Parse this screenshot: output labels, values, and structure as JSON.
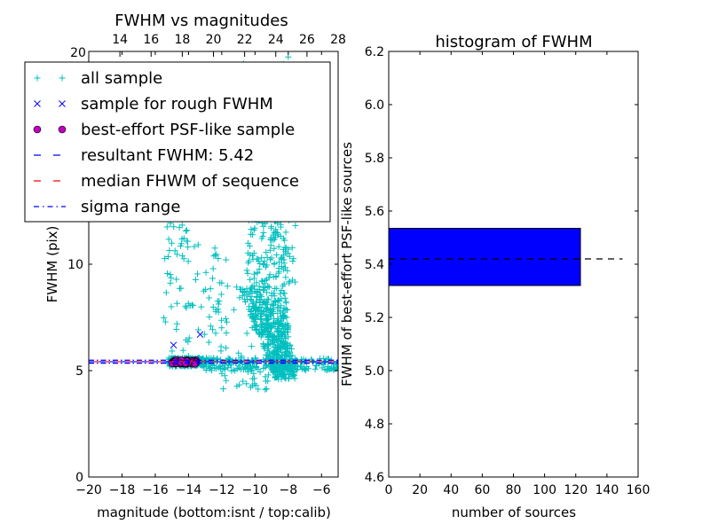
{
  "chart_data": [
    {
      "type": "scatter",
      "title": "FWHM vs magnitudes",
      "xlabel": "magnitude (bottom:isnt / top:calib)",
      "ylabel": "FWHM (pix)",
      "xlim": [
        -20,
        -5
      ],
      "ylim": [
        0,
        20
      ],
      "x_ticks": [
        -20,
        -18,
        -16,
        -14,
        -12,
        -10,
        -8,
        -6
      ],
      "x_tick_labels": [
        "−20",
        "−18",
        "−16",
        "−14",
        "−12",
        "−10",
        "−8",
        "−6"
      ],
      "y_ticks": [
        0,
        5,
        10
      ],
      "y_tick_labels": [
        "0",
        "5",
        "10"
      ],
      "top_xlim": [
        12,
        28
      ],
      "top_x_ticks": [
        14,
        16,
        18,
        20,
        22,
        24,
        26,
        28
      ],
      "top_x_tick_labels": [
        "14",
        "16",
        "18",
        "20",
        "22",
        "24",
        "26",
        "28"
      ],
      "top_left_tick_label": "20",
      "grid": false,
      "legend_position": "top-left",
      "legend": [
        {
          "label": "all sample",
          "marker": "+",
          "color": "#00bfbf"
        },
        {
          "label": "sample for rough FWHM",
          "marker": "x",
          "color": "#0000ff"
        },
        {
          "label": "best-effort PSF-like sample",
          "marker": "o",
          "color": "#bf00bf"
        },
        {
          "label": "resultant FWHM: 5.42",
          "marker": "dashed",
          "color": "#0000ff"
        },
        {
          "label": "median FHWM of sequence",
          "marker": "dashed",
          "color": "#ff0000"
        },
        {
          "label": "sigma range",
          "marker": "dashdot",
          "color": "#0000ff"
        }
      ],
      "resultant_fwhm": 5.42,
      "median_fwhm": 5.42,
      "sigma_range": [
        5.35,
        5.49
      ],
      "rough_sample_points": [
        {
          "x": -14.9,
          "y": 6.2
        },
        {
          "x": -13.3,
          "y": 6.7
        }
      ],
      "psf_sample": {
        "x_range": [
          -15.0,
          -13.5
        ],
        "y_range": [
          5.3,
          5.5
        ],
        "count": 123
      },
      "all_sample_clusters": [
        {
          "x_range": [
            -15.2,
            -13.0
          ],
          "y_range": [
            5.2,
            5.6
          ],
          "count": 260
        },
        {
          "x_range": [
            -13.0,
            -5.0
          ],
          "y_range": [
            5.0,
            5.6
          ],
          "count": 220
        },
        {
          "x_range": [
            -9.5,
            -6.5
          ],
          "y_range": [
            4.6,
            9.0
          ],
          "count": 480
        },
        {
          "x_range": [
            -10.5,
            -7.5
          ],
          "y_range": [
            9.0,
            14.0
          ],
          "count": 190
        },
        {
          "x_range": [
            -11.0,
            -8.0
          ],
          "y_range": [
            14.0,
            20.0
          ],
          "count": 60
        },
        {
          "x_range": [
            -15.5,
            -14.0
          ],
          "y_range": [
            5.6,
            12.5
          ],
          "count": 45
        },
        {
          "x_range": [
            -14.5,
            -12.0
          ],
          "y_range": [
            5.6,
            11.0
          ],
          "count": 30
        },
        {
          "x_range": [
            -13.0,
            -10.0
          ],
          "y_range": [
            5.6,
            10.5
          ],
          "count": 35
        },
        {
          "x_range": [
            -12.0,
            -9.0
          ],
          "y_range": [
            4.0,
            5.0
          ],
          "count": 25
        }
      ]
    },
    {
      "type": "bar",
      "title": "histogram of FWHM",
      "xlabel": "number of sources",
      "ylabel": "FWHM of best-effort PSF-like sources",
      "orientation": "horizontal",
      "xlim": [
        0,
        160
      ],
      "ylim": [
        4.6,
        6.2
      ],
      "x_ticks": [
        0,
        20,
        40,
        60,
        80,
        100,
        120,
        140,
        160
      ],
      "x_tick_labels": [
        "0",
        "20",
        "40",
        "60",
        "80",
        "100",
        "120",
        "140",
        "160"
      ],
      "y_ticks": [
        4.6,
        4.8,
        5.0,
        5.2,
        5.4,
        5.6,
        5.8,
        6.0,
        6.2
      ],
      "y_tick_labels": [
        "4.6",
        "4.8",
        "5.0",
        "5.2",
        "5.4",
        "5.6",
        "5.8",
        "6.0",
        "6.2"
      ],
      "bars": [
        {
          "y_low": 5.32,
          "y_high": 5.535,
          "value": 123,
          "color": "#0000ff"
        }
      ],
      "reference_line": {
        "y": 5.42,
        "x_range": [
          0,
          150
        ],
        "style": "dashed",
        "color": "#000000"
      },
      "grid": false
    }
  ]
}
